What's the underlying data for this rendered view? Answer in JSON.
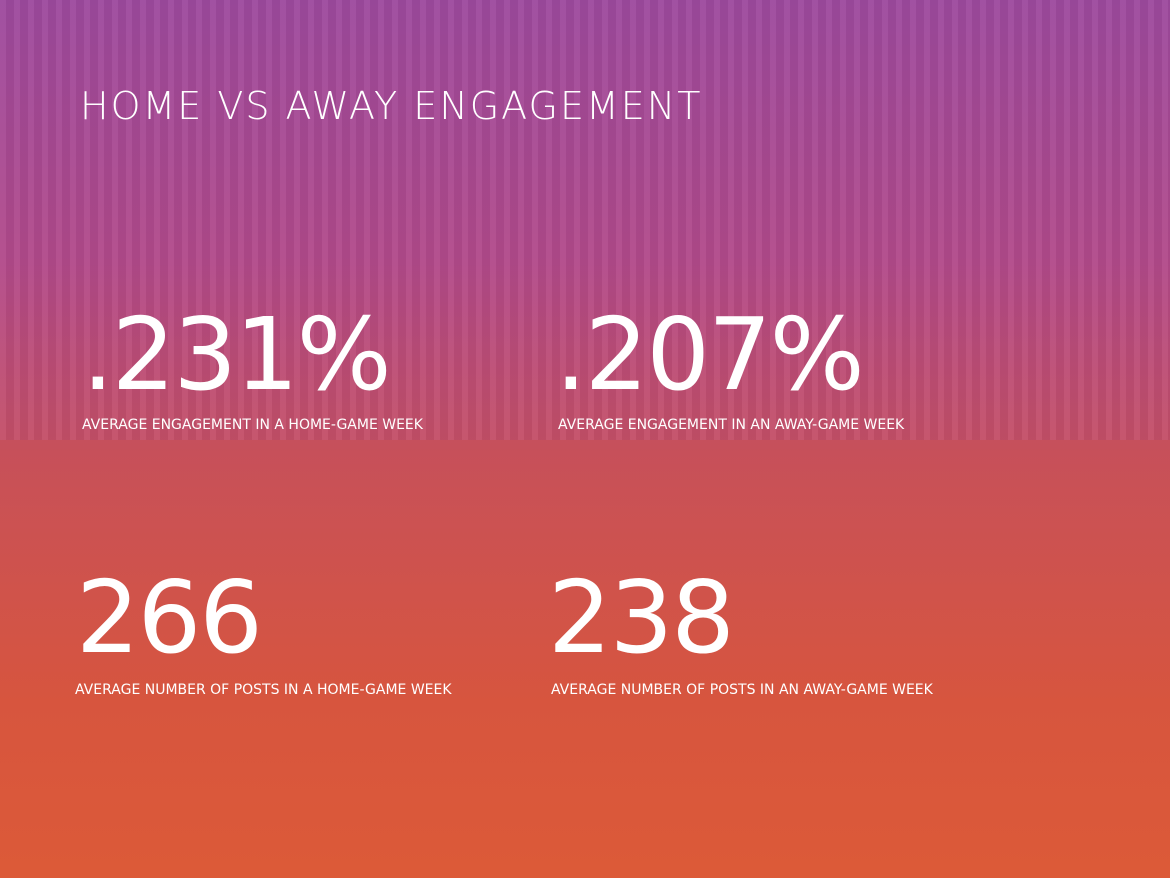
{
  "header": {
    "title": "HOME VS AWAY ENGAGEMENT"
  },
  "stats": [
    {
      "value": ".231%",
      "label": "AVERAGE ENGAGEMENT IN A HOME-GAME WEEK"
    },
    {
      "value": ".207%",
      "label": "AVERAGE ENGAGEMENT IN AN AWAY-GAME WEEK"
    },
    {
      "value": "266",
      "label": "AVERAGE NUMBER OF POSTS IN A HOME-GAME WEEK"
    },
    {
      "value": "238",
      "label": "AVERAGE NUMBER OF POSTS IN AN AWAY-GAME WEEK"
    }
  ]
}
